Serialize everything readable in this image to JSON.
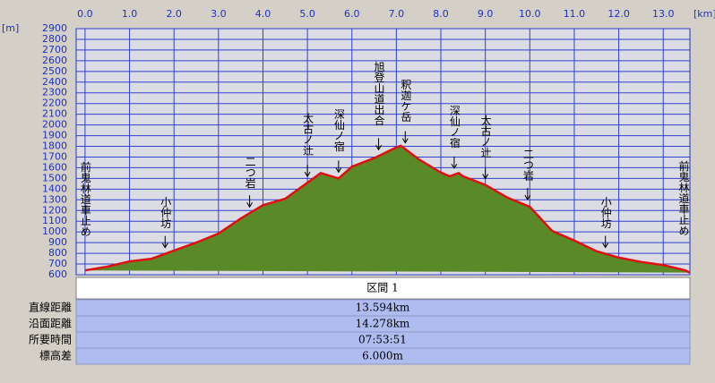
{
  "chart_data": {
    "type": "area",
    "x_unit": "[km]",
    "y_unit": "[m]",
    "x": [
      0.0,
      0.5,
      1.0,
      1.5,
      2.0,
      2.5,
      3.0,
      3.5,
      4.0,
      4.5,
      5.0,
      5.3,
      5.7,
      6.0,
      6.5,
      7.0,
      7.1,
      7.5,
      8.0,
      8.2,
      8.4,
      8.5,
      9.0,
      9.5,
      10.0,
      10.5,
      11.0,
      11.5,
      12.0,
      12.5,
      13.0,
      13.5,
      13.594
    ],
    "values": [
      640,
      675,
      725,
      750,
      825,
      900,
      985,
      1125,
      1250,
      1310,
      1460,
      1550,
      1500,
      1610,
      1690,
      1790,
      1805,
      1680,
      1555,
      1520,
      1550,
      1520,
      1440,
      1320,
      1235,
      1010,
      920,
      820,
      760,
      720,
      690,
      640,
      620
    ],
    "fill_color": "#5a8a28",
    "line_color": "#e01010",
    "xlim": [
      -0.2,
      13.6
    ],
    "ylim": [
      600,
      2900
    ],
    "xticks": [
      {
        "value": 0,
        "label": "0.0"
      },
      {
        "value": 1,
        "label": "1.0"
      },
      {
        "value": 2,
        "label": "2.0"
      },
      {
        "value": 3,
        "label": "3.0"
      },
      {
        "value": 4,
        "label": "4.0"
      },
      {
        "value": 5,
        "label": "5.0"
      },
      {
        "value": 6,
        "label": "6.0"
      },
      {
        "value": 7,
        "label": "7.0"
      },
      {
        "value": 8,
        "label": "8.0"
      },
      {
        "value": 9,
        "label": "9.0"
      },
      {
        "value": 10,
        "label": "10.0"
      },
      {
        "value": 11,
        "label": "11.0"
      },
      {
        "value": 12,
        "label": "12.0"
      },
      {
        "value": 13,
        "label": "13.0"
      }
    ],
    "yticks": [
      600,
      700,
      800,
      900,
      1000,
      1100,
      1200,
      1300,
      1400,
      1500,
      1600,
      1700,
      1800,
      1900,
      2000,
      2100,
      2200,
      2300,
      2400,
      2500,
      2600,
      2700,
      2800,
      2900
    ],
    "grid": true,
    "annotations": [
      {
        "text": "前鬼林道車止め",
        "x": 0.0,
        "arrow": false
      },
      {
        "text": "小仲坊",
        "x": 1.8,
        "arrow": true
      },
      {
        "text": "二つ岩",
        "x": 3.7,
        "arrow": true
      },
      {
        "text": "太古ノ辻",
        "x": 5.0,
        "arrow": true
      },
      {
        "text": "深仙ノ宿",
        "x": 5.7,
        "arrow": true
      },
      {
        "text": "旭登山道出合",
        "x": 6.6,
        "arrow": true
      },
      {
        "text": "釈迦ケ岳",
        "x": 7.2,
        "arrow": true
      },
      {
        "text": "深仙ノ宿",
        "x": 8.3,
        "arrow": true
      },
      {
        "text": "太古ノ辻",
        "x": 9.0,
        "arrow": true
      },
      {
        "text": "二つ岩",
        "x": 9.95,
        "arrow": true
      },
      {
        "text": "小仲坊",
        "x": 11.7,
        "arrow": true
      },
      {
        "text": "前鬼林道車止め",
        "x": 13.45,
        "arrow": false
      }
    ]
  },
  "table": {
    "header": "区間 1",
    "rows": [
      [
        "直線距離",
        "13.594km"
      ],
      [
        "沿面距離",
        "14.278km"
      ],
      [
        "所要時間",
        "07:53:51"
      ],
      [
        "標高差",
        "6.000m"
      ]
    ]
  }
}
